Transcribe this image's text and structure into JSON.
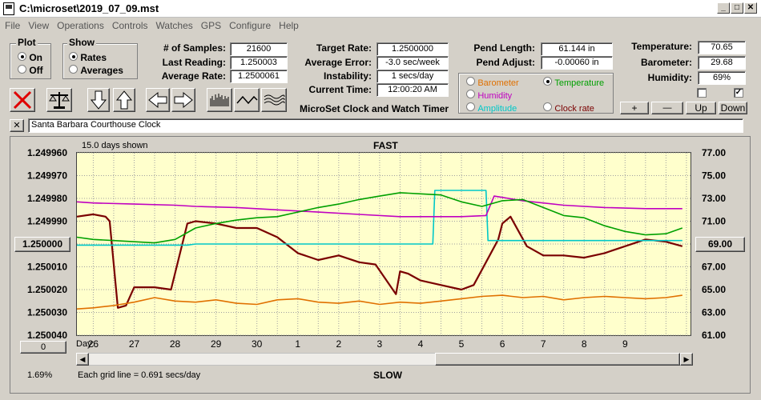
{
  "window": {
    "title": "C:\\microset\\2019_07_09.mst"
  },
  "menu": [
    "File",
    "View",
    "Operations",
    "Controls",
    "Watches",
    "GPS",
    "Configure",
    "Help"
  ],
  "plot_group": {
    "label": "Plot",
    "on": "On",
    "off": "Off",
    "selected": "On"
  },
  "show_group": {
    "label": "Show",
    "rates": "Rates",
    "averages": "Averages",
    "selected": "Rates"
  },
  "stats": {
    "samples_label": "# of Samples:",
    "samples": "21600",
    "last_reading_label": "Last Reading:",
    "last_reading": "1.250003",
    "average_rate_label": "Average Rate:",
    "average_rate": "1.2500061",
    "target_rate_label": "Target Rate:",
    "target_rate": "1.2500000",
    "average_error_label": "Average Error:",
    "average_error": "-3.0 sec/week",
    "instability_label": "Instability:",
    "instability": "1 secs/day",
    "current_time_label": "Current Time:",
    "current_time": "12:00:20 AM",
    "pend_length_label": "Pend Length:",
    "pend_length": "61.144 in",
    "pend_adjust_label": "Pend Adjust:",
    "pend_adjust": "-0.00060 in",
    "temperature_label": "Temperature:",
    "temperature": "70.65",
    "barometer_label": "Barometer:",
    "barometer": "29.68",
    "humidity_label": "Humidity:",
    "humidity": "69%"
  },
  "app_caption": "MicroSet Clock and Watch Timer",
  "overlay_options": {
    "barometer": "Barometer",
    "temperature": "Temperature",
    "humidity": "Humidity",
    "amplitude": "Amplitude",
    "clock_rate": "Clock rate",
    "selected": "Temperature",
    "colors": {
      "barometer": "#e07000",
      "temperature": "#00a000",
      "humidity": "#c000c0",
      "amplitude": "#00c8c8",
      "clock_rate": "#7a0000"
    }
  },
  "adjust_buttons": {
    "plus": "+",
    "minus": "—",
    "up": "Up",
    "down": "Down"
  },
  "clock_name": "Santa Barbara Courthouse Clock",
  "close_x": "✕",
  "graph": {
    "days_shown": "15.0 days shown",
    "top_label": "FAST",
    "bottom_label": "SLOW",
    "center_button": "1.250000",
    "right_button": "69.00",
    "zero_button": "0",
    "day_label": "Day:",
    "grid_note": "Each grid line = 0.691 secs/day",
    "percent": "1.69%"
  },
  "chart_data": {
    "type": "line",
    "x_label": "Day:",
    "x_ticks": [
      "26",
      "27",
      "28",
      "29",
      "30",
      "1",
      "2",
      "3",
      "4",
      "5",
      "6",
      "7",
      "8",
      "9"
    ],
    "x_range": [
      25.6,
      40.6
    ],
    "x_tick_positions": [
      26,
      27,
      28,
      29,
      30,
      31,
      32,
      33,
      34,
      35,
      36,
      37,
      38,
      39
    ],
    "left_axis": {
      "ticks": [
        "1.249960",
        "1.249970",
        "1.249980",
        "1.249990",
        "1.250000",
        "1.250010",
        "1.250020",
        "1.250030",
        "1.250040"
      ],
      "range": [
        1.24996,
        1.25004
      ],
      "inverted": true
    },
    "right_axis": {
      "ticks": [
        "77.00",
        "75.00",
        "73.00",
        "71.00",
        "69.00",
        "67.00",
        "65.00",
        "63.00",
        "61.00"
      ],
      "range": [
        61,
        77
      ]
    },
    "grid": true,
    "series": [
      {
        "name": "Clock rate",
        "axis": "left",
        "color": "#7a0000",
        "x": [
          25.6,
          26.0,
          26.3,
          26.4,
          26.6,
          26.8,
          27.0,
          27.5,
          27.9,
          28.3,
          28.5,
          29.0,
          29.5,
          30.0,
          30.5,
          31.0,
          31.5,
          32.0,
          32.5,
          32.9,
          33.4,
          33.5,
          33.7,
          34.0,
          34.5,
          35.0,
          35.3,
          35.6,
          35.9,
          36.0,
          36.2,
          36.6,
          37.0,
          37.5,
          38.0,
          38.5,
          39.0,
          39.5,
          40.0,
          40.4
        ],
        "y": [
          1.249988,
          1.249987,
          1.249988,
          1.24999,
          1.250028,
          1.250027,
          1.250019,
          1.250019,
          1.25002,
          1.249991,
          1.24999,
          1.249991,
          1.249993,
          1.249993,
          1.249997,
          1.250004,
          1.250007,
          1.250005,
          1.250008,
          1.250009,
          1.250022,
          1.250012,
          1.250013,
          1.250016,
          1.250018,
          1.25002,
          1.250018,
          1.250008,
          1.249998,
          1.249991,
          1.249988,
          1.250001,
          1.250005,
          1.250005,
          1.250006,
          1.250004,
          1.250001,
          1.249998,
          1.249999,
          1.250001
        ]
      },
      {
        "name": "Amplitude",
        "axis": "right",
        "color": "#00c8c8",
        "x": [
          25.6,
          28.3,
          28.5,
          33.3,
          33.6,
          34.3,
          34.35,
          35.6,
          35.65,
          40.4
        ],
        "y": [
          68.9,
          68.9,
          69.0,
          69.0,
          69.0,
          69.0,
          73.7,
          73.7,
          69.3,
          69.3
        ]
      },
      {
        "name": "Humidity",
        "axis": "right",
        "color": "#c000c0",
        "x": [
          25.6,
          26.0,
          27.0,
          28.0,
          28.5,
          29.5,
          30.5,
          31.5,
          32.5,
          33.5,
          34.5,
          35.0,
          35.6,
          35.8,
          36.5,
          37.5,
          38.5,
          39.5,
          40.4
        ],
        "y": [
          72.7,
          72.6,
          72.5,
          72.4,
          72.3,
          72.2,
          72.0,
          71.8,
          71.6,
          71.4,
          71.4,
          71.4,
          71.5,
          73.2,
          72.8,
          72.4,
          72.2,
          72.1,
          72.1
        ]
      },
      {
        "name": "Temperature",
        "axis": "right",
        "color": "#00a000",
        "x": [
          25.6,
          26.0,
          26.5,
          27.5,
          28.0,
          28.5,
          29.0,
          29.5,
          30.0,
          30.5,
          31.0,
          31.5,
          32.0,
          32.5,
          33.0,
          33.5,
          34.0,
          34.5,
          35.0,
          35.5,
          36.0,
          36.5,
          37.0,
          37.5,
          38.0,
          38.5,
          39.0,
          39.5,
          40.0,
          40.4
        ],
        "y": [
          69.6,
          69.4,
          69.3,
          69.1,
          69.4,
          70.4,
          70.8,
          71.1,
          71.3,
          71.4,
          71.8,
          72.2,
          72.5,
          72.9,
          73.2,
          73.5,
          73.4,
          73.3,
          72.7,
          72.3,
          72.8,
          72.9,
          72.2,
          71.5,
          71.3,
          70.6,
          70.1,
          69.8,
          69.9,
          70.4
        ]
      },
      {
        "name": "Barometer",
        "axis": "right",
        "color": "#e07000",
        "x": [
          25.6,
          26.0,
          26.5,
          27.0,
          27.5,
          28.0,
          28.5,
          29.0,
          29.5,
          30.0,
          30.5,
          31.0,
          31.5,
          32.0,
          32.5,
          33.0,
          33.5,
          34.0,
          34.5,
          35.0,
          35.5,
          36.0,
          36.5,
          37.0,
          37.5,
          38.0,
          38.5,
          39.0,
          39.5,
          40.0,
          40.4
        ],
        "y": [
          63.3,
          63.4,
          63.6,
          63.9,
          64.3,
          64.0,
          63.9,
          64.1,
          63.8,
          63.7,
          64.1,
          64.2,
          63.9,
          63.8,
          64.0,
          63.7,
          63.9,
          63.8,
          64.0,
          64.2,
          64.4,
          64.5,
          64.3,
          64.4,
          64.1,
          64.3,
          64.4,
          64.3,
          64.2,
          64.3,
          64.5
        ]
      }
    ]
  }
}
